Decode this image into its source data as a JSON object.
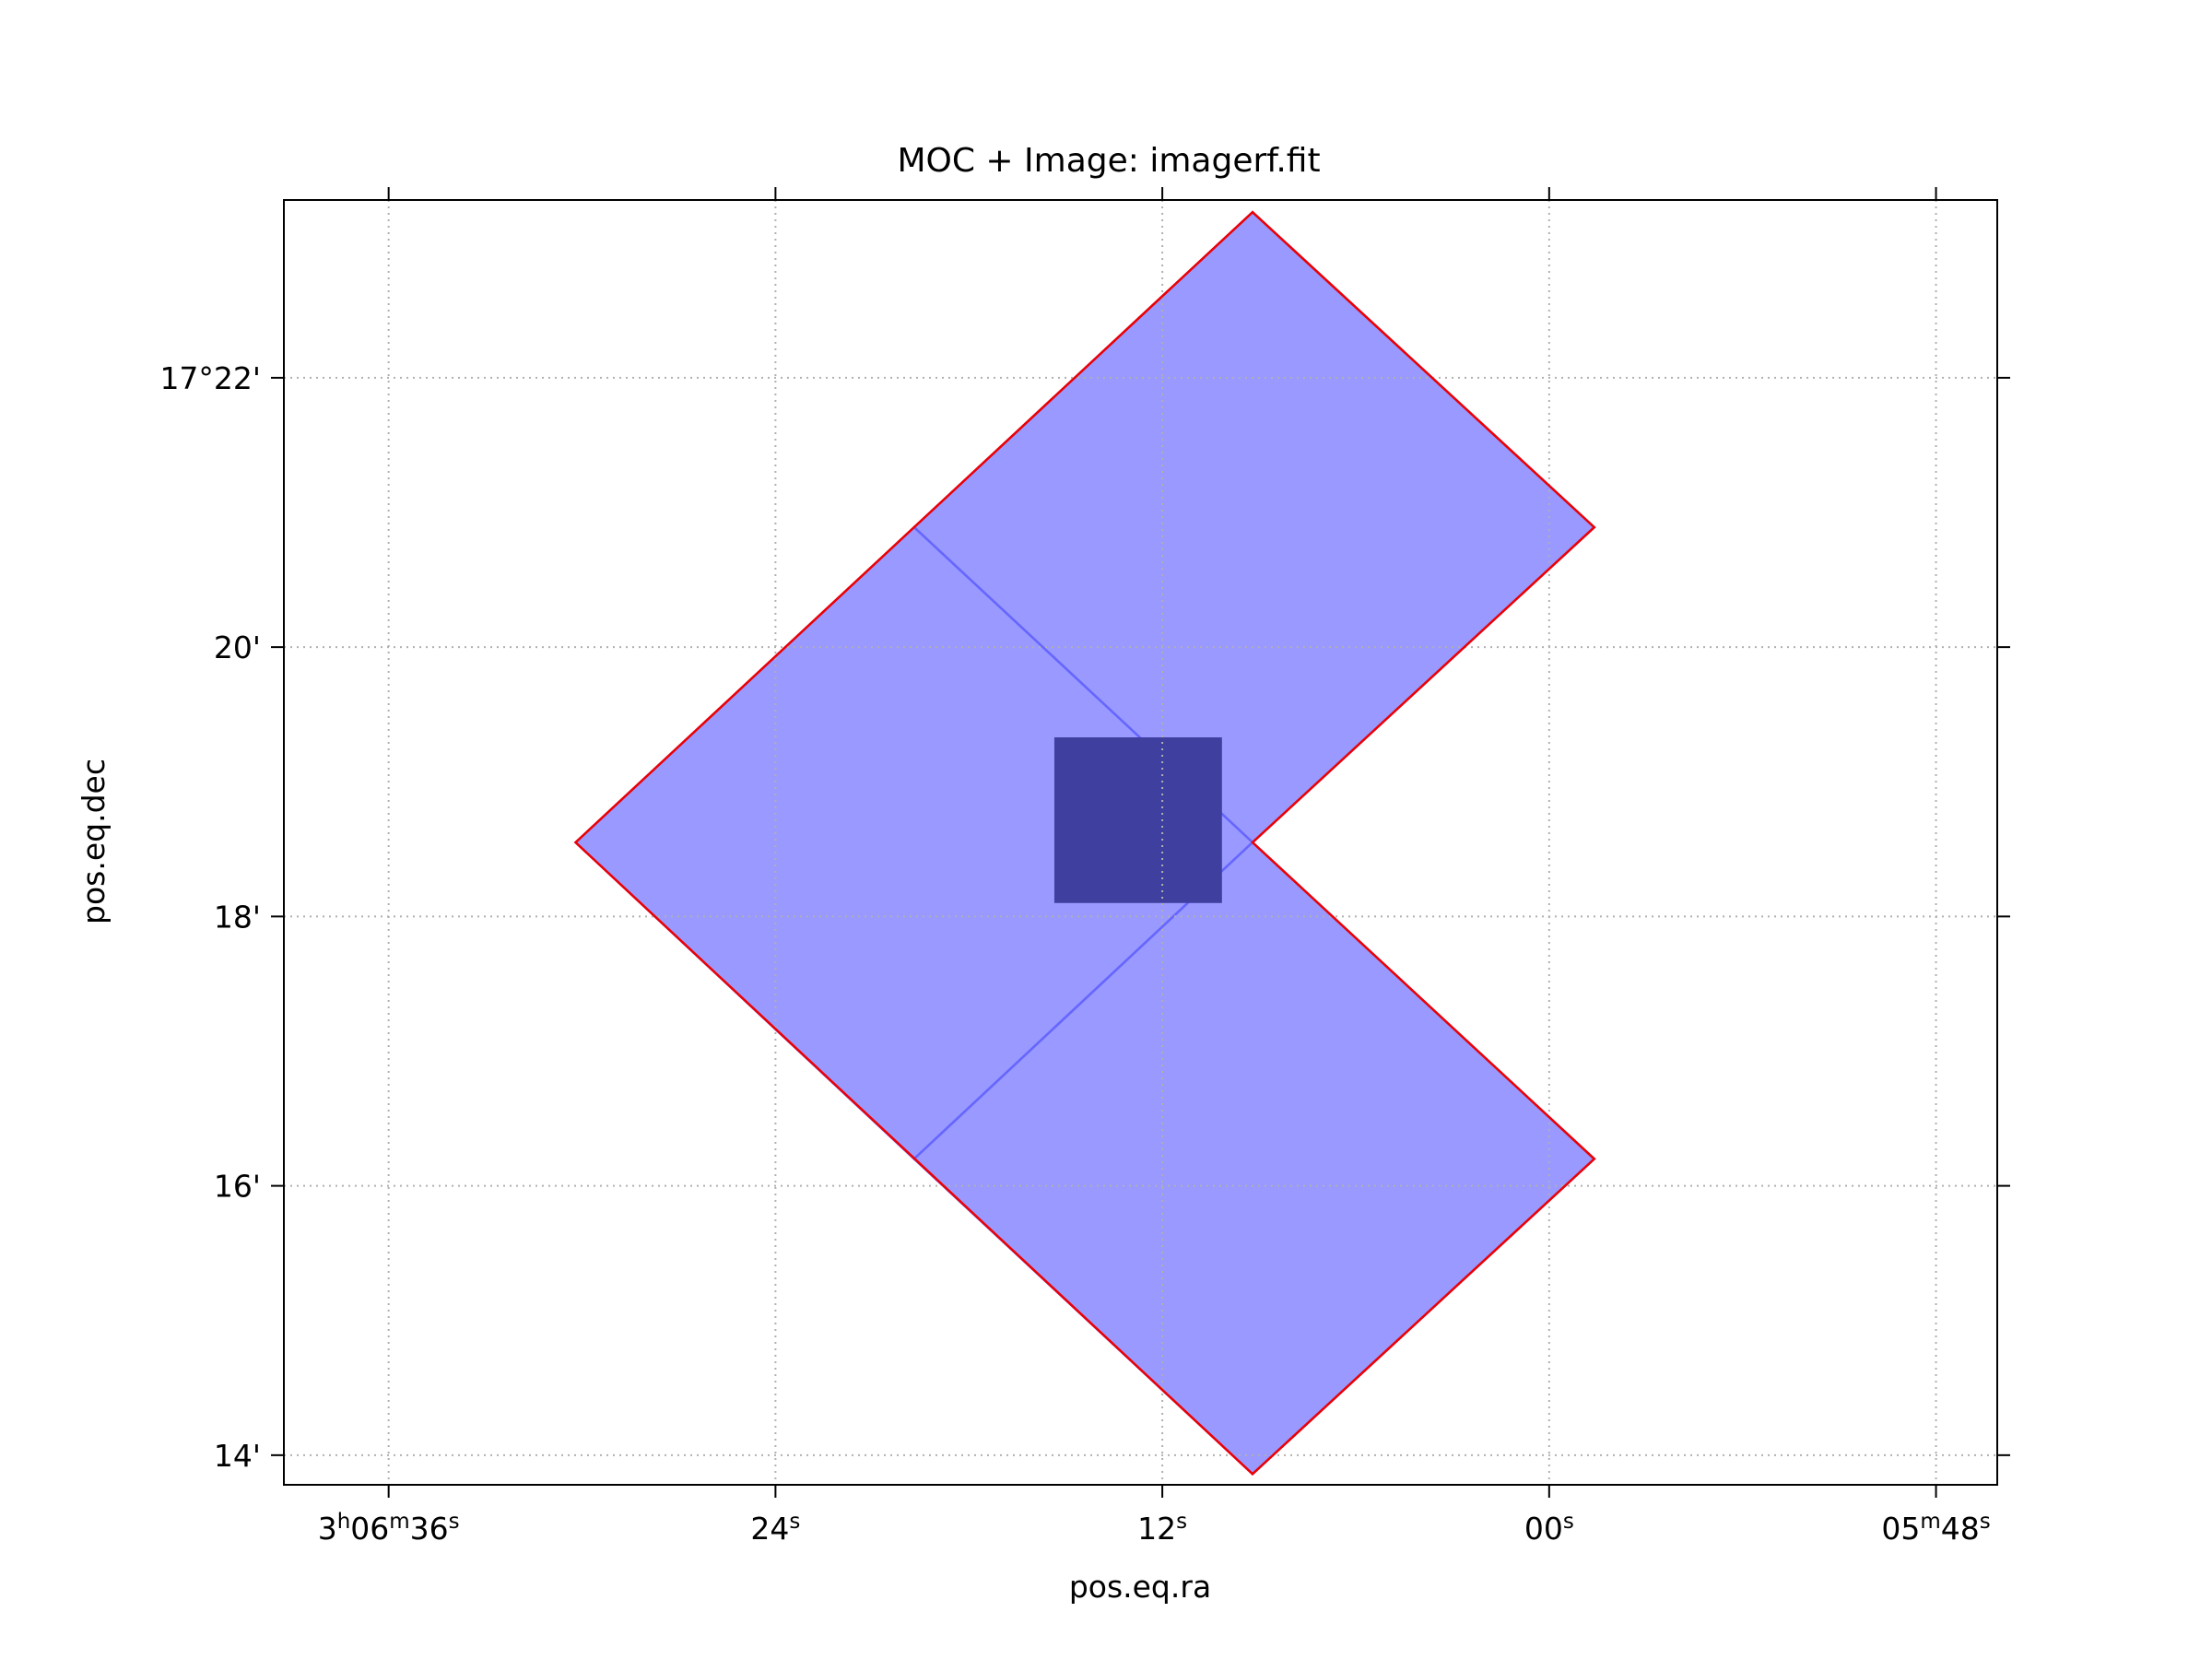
{
  "chart_data": {
    "type": "area",
    "title": "MOC + Image: imagerf.fit",
    "xlabel": "pos.eq.ra",
    "ylabel": "pos.eq.dec",
    "grid": true,
    "x_ticks": [
      {
        "ra_sec": 36,
        "label": "3h06m36s",
        "parts": [
          [
            "3",
            "n"
          ],
          [
            "h",
            "s"
          ],
          [
            "06",
            "n"
          ],
          [
            "m",
            "s"
          ],
          [
            "36",
            "n"
          ],
          [
            "s",
            "s"
          ]
        ]
      },
      {
        "ra_sec": 24,
        "label": "24s",
        "parts": [
          [
            "24",
            "n"
          ],
          [
            "s",
            "s"
          ]
        ]
      },
      {
        "ra_sec": 12,
        "label": "12s",
        "parts": [
          [
            "12",
            "n"
          ],
          [
            "s",
            "s"
          ]
        ]
      },
      {
        "ra_sec": 0,
        "label": "00s",
        "parts": [
          [
            "00",
            "n"
          ],
          [
            "s",
            "s"
          ]
        ]
      },
      {
        "ra_sec": -12,
        "label": "05m48s",
        "parts": [
          [
            "05",
            "n"
          ],
          [
            "m",
            "s"
          ],
          [
            "48",
            "n"
          ],
          [
            "s",
            "s"
          ]
        ]
      }
    ],
    "y_ticks": [
      {
        "dec_min": 22,
        "label": "17°22'"
      },
      {
        "dec_min": 20,
        "label": "20'"
      },
      {
        "dec_min": 18,
        "label": "18'"
      },
      {
        "dec_min": 16,
        "label": "16'"
      },
      {
        "dec_min": 14,
        "label": "14'"
      }
    ],
    "xlim_ra_sec": [
      39.25,
      -13.9
    ],
    "ylim_dec_min": [
      13.78,
      23.32
    ],
    "moc_cells": [
      [
        [
          9.2,
          23.23
        ],
        [
          -1.4,
          20.89
        ],
        [
          9.2,
          18.55
        ],
        [
          19.7,
          20.89
        ]
      ],
      [
        [
          19.7,
          20.89
        ],
        [
          9.2,
          18.55
        ],
        [
          19.7,
          16.2
        ],
        [
          30.2,
          18.55
        ]
      ],
      [
        [
          9.2,
          18.55
        ],
        [
          -1.4,
          16.2
        ],
        [
          9.2,
          13.86
        ],
        [
          19.7,
          16.2
        ]
      ]
    ],
    "moc_outline": [
      [
        9.2,
        23.23
      ],
      [
        -1.4,
        20.89
      ],
      [
        9.2,
        18.55
      ],
      [
        -1.4,
        16.2
      ],
      [
        9.2,
        13.86
      ],
      [
        30.2,
        18.55
      ]
    ],
    "image_footprint": {
      "ra_sec": [
        15.35,
        10.15
      ],
      "dec_min": [
        18.1,
        19.33
      ]
    },
    "colors": {
      "moc_fill": "#9999ff",
      "moc_edge": "#ee0000",
      "cell_edge": "#6666ff",
      "image": "#3f3f9f",
      "grid": "#b0b0b0"
    }
  }
}
